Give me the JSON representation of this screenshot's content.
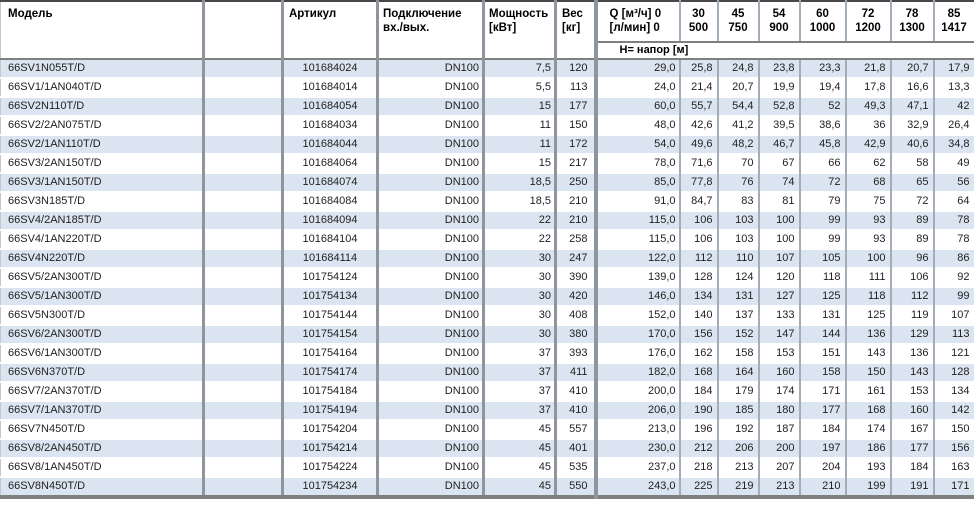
{
  "colors": {
    "row_stripe": "#dbe5f1",
    "divider_thick": "#8e959c",
    "divider_thin": "#a3adb7",
    "header_rule": "#7f7f7f",
    "top_border": "#474747",
    "text": "#1f1f1f"
  },
  "table": {
    "headers": {
      "model": "Модель",
      "article": "Артикул",
      "connection_line1": "Подключение",
      "connection_line2": "вх./вых.",
      "power_line1": "Мощность",
      "power_line2": "[кВт]",
      "weight_line1": "Вес",
      "weight_line2": "[кг]",
      "q_line1": "Q [м³/ч] 0",
      "q_line2": "[л/мин] 0",
      "head_row_label": "Н= напор [м]",
      "flow_columns": [
        {
          "m3h": "30",
          "lmin": "500"
        },
        {
          "m3h": "45",
          "lmin": "750"
        },
        {
          "m3h": "54",
          "lmin": "900"
        },
        {
          "m3h": "60",
          "lmin": "1000"
        },
        {
          "m3h": "72",
          "lmin": "1200"
        },
        {
          "m3h": "78",
          "lmin": "1300"
        },
        {
          "m3h": "85",
          "lmin": "1417"
        }
      ]
    },
    "rows": [
      {
        "model": "66SV1N055T/D",
        "article": "101684024",
        "connection": "DN100",
        "power": "7,5",
        "weight": "120",
        "head": [
          "29,0",
          "25,8",
          "24,8",
          "23,8",
          "23,3",
          "21,8",
          "20,7",
          "17,9"
        ]
      },
      {
        "model": "66SV1/1AN040T/D",
        "article": "101684014",
        "connection": "DN100",
        "power": "5,5",
        "weight": "113",
        "head": [
          "24,0",
          "21,4",
          "20,7",
          "19,9",
          "19,4",
          "17,8",
          "16,6",
          "13,3"
        ]
      },
      {
        "model": "66SV2N110T/D",
        "article": "101684054",
        "connection": "DN100",
        "power": "15",
        "weight": "177",
        "head": [
          "60,0",
          "55,7",
          "54,4",
          "52,8",
          "52",
          "49,3",
          "47,1",
          "42"
        ]
      },
      {
        "model": "66SV2/2AN075T/D",
        "article": "101684034",
        "connection": "DN100",
        "power": "11",
        "weight": "150",
        "head": [
          "48,0",
          "42,6",
          "41,2",
          "39,5",
          "38,6",
          "36",
          "32,9",
          "26,4"
        ]
      },
      {
        "model": "66SV2/1AN110T/D",
        "article": "101684044",
        "connection": "DN100",
        "power": "11",
        "weight": "172",
        "head": [
          "54,0",
          "49,6",
          "48,2",
          "46,7",
          "45,8",
          "42,9",
          "40,6",
          "34,8"
        ]
      },
      {
        "model": "66SV3/2AN150T/D",
        "article": "101684064",
        "connection": "DN100",
        "power": "15",
        "weight": "217",
        "head": [
          "78,0",
          "71,6",
          "70",
          "67",
          "66",
          "62",
          "58",
          "49"
        ]
      },
      {
        "model": "66SV3/1AN150T/D",
        "article": "101684074",
        "connection": "DN100",
        "power": "18,5",
        "weight": "250",
        "head": [
          "85,0",
          "77,8",
          "76",
          "74",
          "72",
          "68",
          "65",
          "56"
        ]
      },
      {
        "model": "66SV3N185T/D",
        "article": "101684084",
        "connection": "DN100",
        "power": "18,5",
        "weight": "210",
        "head": [
          "91,0",
          "84,7",
          "83",
          "81",
          "79",
          "75",
          "72",
          "64"
        ]
      },
      {
        "model": "66SV4/2AN185T/D",
        "article": "101684094",
        "connection": "DN100",
        "power": "22",
        "weight": "210",
        "head": [
          "115,0",
          "106",
          "103",
          "100",
          "99",
          "93",
          "89",
          "78"
        ]
      },
      {
        "model": "66SV4/1AN220T/D",
        "article": "101684104",
        "connection": "DN100",
        "power": "22",
        "weight": "258",
        "head": [
          "115,0",
          "106",
          "103",
          "100",
          "99",
          "93",
          "89",
          "78"
        ]
      },
      {
        "model": "66SV4N220T/D",
        "article": "101684114",
        "connection": "DN100",
        "power": "30",
        "weight": "247",
        "head": [
          "122,0",
          "112",
          "110",
          "107",
          "105",
          "100",
          "96",
          "86"
        ]
      },
      {
        "model": "66SV5/2AN300T/D",
        "article": "101754124",
        "connection": "DN100",
        "power": "30",
        "weight": "390",
        "head": [
          "139,0",
          "128",
          "124",
          "120",
          "118",
          "111",
          "106",
          "92"
        ]
      },
      {
        "model": "66SV5/1AN300T/D",
        "article": "101754134",
        "connection": "DN100",
        "power": "30",
        "weight": "420",
        "head": [
          "146,0",
          "134",
          "131",
          "127",
          "125",
          "118",
          "112",
          "99"
        ]
      },
      {
        "model": "66SV5N300T/D",
        "article": "101754144",
        "connection": "DN100",
        "power": "30",
        "weight": "408",
        "head": [
          "152,0",
          "140",
          "137",
          "133",
          "131",
          "125",
          "119",
          "107"
        ]
      },
      {
        "model": "66SV6/2AN300T/D",
        "article": "101754154",
        "connection": "DN100",
        "power": "30",
        "weight": "380",
        "head": [
          "170,0",
          "156",
          "152",
          "147",
          "144",
          "136",
          "129",
          "113"
        ]
      },
      {
        "model": "66SV6/1AN300T/D",
        "article": "101754164",
        "connection": "DN100",
        "power": "37",
        "weight": "393",
        "head": [
          "176,0",
          "162",
          "158",
          "153",
          "151",
          "143",
          "136",
          "121"
        ]
      },
      {
        "model": "66SV6N370T/D",
        "article": "101754174",
        "connection": "DN100",
        "power": "37",
        "weight": "411",
        "head": [
          "182,0",
          "168",
          "164",
          "160",
          "158",
          "150",
          "143",
          "128"
        ]
      },
      {
        "model": "66SV7/2AN370T/D",
        "article": "101754184",
        "connection": "DN100",
        "power": "37",
        "weight": "410",
        "head": [
          "200,0",
          "184",
          "179",
          "174",
          "171",
          "161",
          "153",
          "134"
        ]
      },
      {
        "model": "66SV7/1AN370T/D",
        "article": "101754194",
        "connection": "DN100",
        "power": "37",
        "weight": "410",
        "head": [
          "206,0",
          "190",
          "185",
          "180",
          "177",
          "168",
          "160",
          "142"
        ]
      },
      {
        "model": "66SV7N450T/D",
        "article": "101754204",
        "connection": "DN100",
        "power": "45",
        "weight": "557",
        "head": [
          "213,0",
          "196",
          "192",
          "187",
          "184",
          "174",
          "167",
          "150"
        ]
      },
      {
        "model": "66SV8/2AN450T/D",
        "article": "101754214",
        "connection": "DN100",
        "power": "45",
        "weight": "401",
        "head": [
          "230,0",
          "212",
          "206",
          "200",
          "197",
          "186",
          "177",
          "156"
        ]
      },
      {
        "model": "66SV8/1AN450T/D",
        "article": "101754224",
        "connection": "DN100",
        "power": "45",
        "weight": "535",
        "head": [
          "237,0",
          "218",
          "213",
          "207",
          "204",
          "193",
          "184",
          "163"
        ]
      },
      {
        "model": "66SV8N450T/D",
        "article": "101754234",
        "connection": "DN100",
        "power": "45",
        "weight": "550",
        "head": [
          "243,0",
          "225",
          "219",
          "213",
          "210",
          "199",
          "191",
          "171"
        ]
      }
    ]
  }
}
